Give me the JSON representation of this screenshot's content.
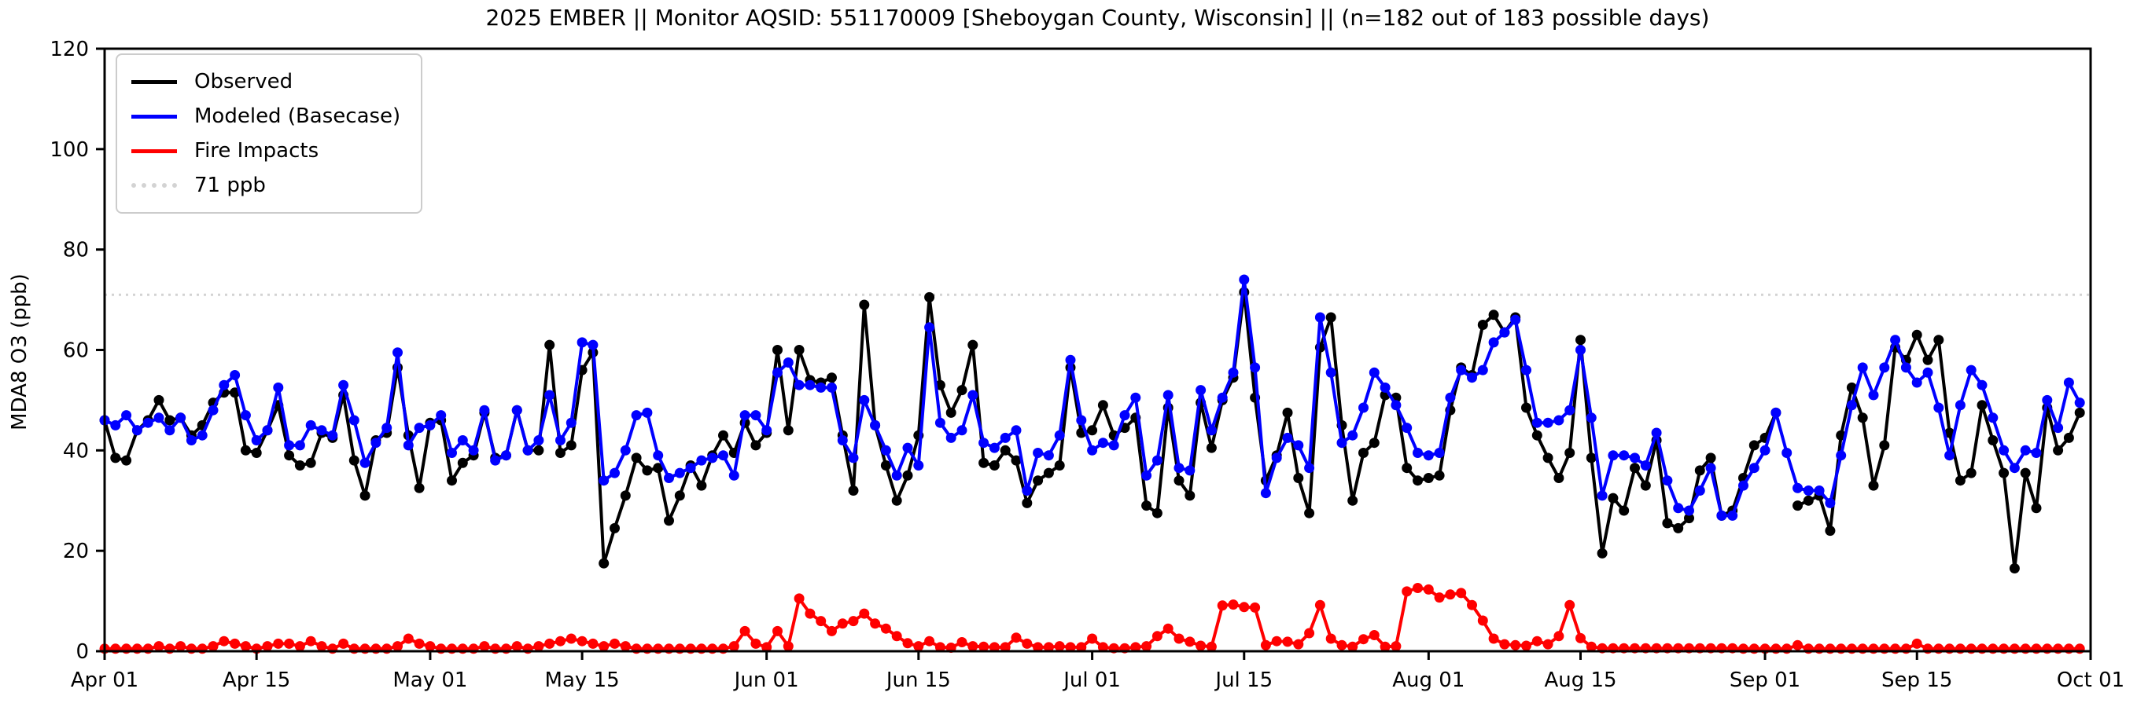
{
  "figure": {
    "title": "2025 EMBER || Monitor AQSID: 551170009 [Sheboygan County, Wisconsin] || (n=182 out of 183 possible days)",
    "ylabel": "MDA8 O3 (ppb)",
    "background": "#ffffff"
  },
  "legend": {
    "items": [
      {
        "label": "Observed",
        "color": "#000000",
        "dotted": false
      },
      {
        "label": "Modeled (Basecase)",
        "color": "#0000ff",
        "dotted": false
      },
      {
        "label": "Fire Impacts",
        "color": "#ff0000",
        "dotted": false
      },
      {
        "label": "71 ppb",
        "color": "#d3d3d3",
        "dotted": true
      }
    ]
  },
  "chart_data": {
    "type": "line",
    "title": "2025 EMBER || Monitor AQSID: 551170009 [Sheboygan County, Wisconsin] || (n=182 out of 183 possible days)",
    "xlabel": "",
    "ylabel": "MDA8 O3 (ppb)",
    "ylim": [
      0,
      120
    ],
    "yticks": [
      0,
      20,
      40,
      60,
      80,
      100,
      120
    ],
    "grid": false,
    "legend_position": "upper-left",
    "x_unit": "day index from Apr 01",
    "x_range_days": 183,
    "xticks": [
      {
        "label": "Apr 01",
        "day": 0
      },
      {
        "label": "Apr 15",
        "day": 14
      },
      {
        "label": "May 01",
        "day": 30
      },
      {
        "label": "May 15",
        "day": 44
      },
      {
        "label": "Jun 01",
        "day": 61
      },
      {
        "label": "Jun 15",
        "day": 75
      },
      {
        "label": "Jul 01",
        "day": 91
      },
      {
        "label": "Jul 15",
        "day": 105
      },
      {
        "label": "Aug 01",
        "day": 122
      },
      {
        "label": "Aug 15",
        "day": 136
      },
      {
        "label": "Sep 01",
        "day": 153
      },
      {
        "label": "Sep 15",
        "day": 167
      },
      {
        "label": "Oct 01",
        "day": 183
      }
    ],
    "threshold": {
      "label": "71 ppb",
      "value": 71,
      "color": "#d3d3d3",
      "style": "dotted"
    },
    "series": [
      {
        "name": "Observed",
        "color": "#000000",
        "values": [
          46,
          38.5,
          38,
          44,
          46,
          50,
          46,
          46.5,
          43,
          45,
          49.5,
          51.5,
          51.5,
          40,
          39.5,
          44,
          49,
          39,
          37,
          37.5,
          43.5,
          42.5,
          51,
          38,
          31,
          42,
          43.5,
          56.5,
          43,
          32.5,
          45.5,
          46,
          34,
          37.5,
          39,
          47.5,
          38.5,
          39,
          48,
          40,
          40,
          61,
          39.5,
          41,
          56,
          59.5,
          17.5,
          24.5,
          31,
          38.5,
          36,
          36.5,
          26,
          31,
          37,
          33,
          39,
          43,
          39.5,
          45.5,
          41,
          43.5,
          60,
          44,
          60,
          54,
          53.5,
          54.5,
          43,
          32,
          69,
          45,
          37,
          30,
          35,
          43,
          70.5,
          53,
          47.5,
          52,
          61,
          37.5,
          37,
          40,
          38,
          29.5,
          34,
          35.5,
          37,
          56.5,
          43.5,
          44,
          49,
          43,
          44.5,
          46.5,
          29,
          27.5,
          48.5,
          34,
          31,
          49.5,
          40.5,
          50,
          54.5,
          71.5,
          50.5,
          34,
          39,
          47.5,
          34.5,
          27.5,
          60.5,
          66.5,
          45,
          30,
          39.5,
          41.5,
          51,
          50.5,
          36.5,
          34,
          34.5,
          35,
          48,
          56.5,
          55,
          65,
          67,
          63.5,
          66.5,
          48.5,
          43,
          38.5,
          34.5,
          39.5,
          62,
          38.5,
          19.5,
          30.5,
          28,
          36.5,
          33,
          42,
          25.5,
          24.5,
          26.5,
          36,
          38.5,
          27,
          28,
          34.5,
          41,
          42.5,
          47.5,
          null,
          29,
          30,
          31,
          24,
          43,
          52.5,
          46.5,
          33,
          41,
          60.5,
          58,
          63,
          58,
          62,
          43.5,
          34,
          35.5,
          49,
          42,
          35.5,
          16.5,
          35.5,
          28.5,
          48.5,
          40,
          42.5,
          47.5
        ]
      },
      {
        "name": "Modeled (Basecase)",
        "color": "#0000ff",
        "values": [
          46,
          45,
          47,
          44,
          45.5,
          46.5,
          44,
          46.5,
          42,
          43,
          48,
          53,
          55,
          47,
          42,
          44,
          52.5,
          41,
          41,
          45,
          44,
          43,
          53,
          46,
          37.5,
          41.5,
          44.5,
          59.5,
          41,
          44.5,
          45,
          47,
          39.5,
          42,
          40,
          48,
          38,
          39,
          48,
          40,
          42,
          51,
          42,
          45.5,
          61.5,
          61,
          34,
          35.5,
          40,
          47,
          47.5,
          39,
          34.5,
          35.5,
          36.5,
          38,
          38.5,
          39,
          35,
          47,
          47,
          44,
          55.5,
          57.5,
          53,
          53,
          52.5,
          52.5,
          42,
          38.5,
          50,
          45,
          40,
          35,
          40.5,
          37,
          64.5,
          45.5,
          42.5,
          44,
          51,
          41.5,
          40.5,
          42.5,
          44,
          32,
          39.5,
          39,
          43,
          58,
          46,
          40,
          41.5,
          41,
          47,
          50.5,
          35,
          38,
          51,
          36.5,
          36,
          52,
          44,
          50.5,
          55.5,
          74,
          56.5,
          31.5,
          38.5,
          42.5,
          41,
          36.5,
          66.5,
          55.5,
          41.5,
          43,
          48.5,
          55.5,
          52.5,
          49,
          44.5,
          39.5,
          39,
          39.5,
          50.5,
          56,
          54.5,
          56,
          61.5,
          63.5,
          66,
          56,
          45.5,
          45.5,
          46,
          48,
          60,
          46.5,
          31,
          39,
          39,
          38.5,
          37,
          43.5,
          34,
          28.5,
          28,
          32,
          36.5,
          27,
          27,
          33,
          36.5,
          40,
          47.5,
          39.5,
          32.5,
          32,
          32,
          29.5,
          39,
          49,
          56.5,
          51,
          56.5,
          62,
          56.5,
          53.5,
          55.5,
          48.5,
          39,
          49,
          56,
          53,
          46.5,
          40,
          36.5,
          40,
          39.5,
          50,
          44.5,
          53.5,
          49.5
        ]
      },
      {
        "name": "Fire Impacts",
        "color": "#ff0000",
        "values": [
          0.5,
          0.5,
          0.5,
          0.5,
          0.5,
          1,
          0.5,
          1,
          0.5,
          0.5,
          1,
          2,
          1.5,
          1,
          0.5,
          1,
          1.5,
          1.5,
          1,
          2,
          1,
          0.5,
          1.5,
          0.5,
          0.5,
          0.5,
          0.5,
          1,
          2.5,
          1.5,
          1,
          0.5,
          0.5,
          0.5,
          0.5,
          1,
          0.5,
          0.5,
          1,
          0.5,
          1,
          1.5,
          2,
          2.5,
          2,
          1.5,
          1,
          1.5,
          1,
          0.5,
          0.5,
          0.5,
          0.5,
          0.5,
          0.5,
          0.5,
          0.5,
          0.5,
          1,
          4,
          1.5,
          0.8,
          4,
          1,
          10.5,
          7.5,
          6,
          4,
          5.5,
          6,
          7.5,
          5.5,
          4.5,
          3,
          1.6,
          1,
          2,
          0.8,
          0.7,
          1.8,
          1,
          0.9,
          0.8,
          0.8,
          2.7,
          1.5,
          0.8,
          0.8,
          1,
          0.8,
          0.8,
          2.5,
          0.8,
          0.6,
          0.6,
          0.8,
          1,
          3,
          4.5,
          2.5,
          1.9,
          1.1,
          0.9,
          9.1,
          9.3,
          8.8,
          8.7,
          1.2,
          2,
          1.9,
          1.4,
          3.6,
          9.2,
          2.5,
          1.2,
          0.9,
          2.4,
          3.2,
          0.9,
          1,
          11.9,
          12.6,
          12.3,
          10.7,
          11.3,
          11.6,
          9.2,
          6.1,
          2.5,
          1.4,
          1.2,
          1.1,
          2,
          1.4,
          3,
          9.2,
          2.6,
          0.9,
          0.6,
          0.6,
          0.6,
          0.6,
          0.6,
          0.6,
          0.6,
          0.6,
          0.6,
          0.6,
          0.6,
          0.6,
          0.6,
          0.5,
          0.5,
          0.5,
          0.5,
          0.5,
          1.2,
          0.5,
          0.5,
          0.5,
          0.5,
          0.5,
          0.5,
          0.5,
          0.5,
          0.5,
          0.5,
          1.5,
          0.5,
          0.5,
          0.5,
          0.5,
          0.5,
          0.5,
          0.5,
          0.5,
          0.5,
          0.5,
          0.5,
          0.5,
          0.5,
          0.5,
          0.5
        ]
      }
    ]
  }
}
